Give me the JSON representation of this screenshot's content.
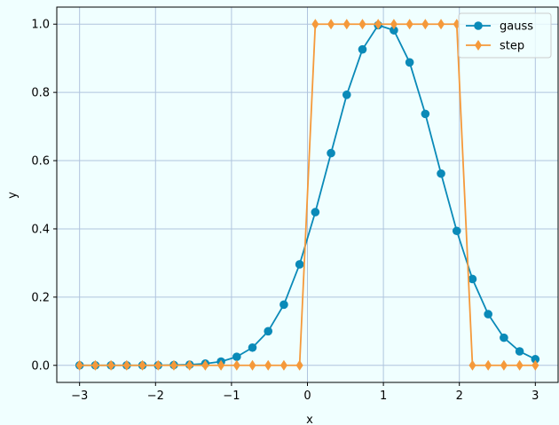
{
  "chart_data": {
    "type": "line",
    "title": "",
    "xlabel": "x",
    "ylabel": "y",
    "xlim": [
      -3.3,
      3.3
    ],
    "ylim": [
      -0.05,
      1.05
    ],
    "xticks": [
      -3,
      -2,
      -1,
      0,
      1,
      2,
      3
    ],
    "xtick_labels": [
      "−3",
      "−2",
      "−1",
      "0",
      "1",
      "2",
      "3"
    ],
    "yticks": [
      0.0,
      0.2,
      0.4,
      0.6,
      0.8,
      1.0
    ],
    "ytick_labels": [
      "0.0",
      "0.2",
      "0.4",
      "0.6",
      "0.8",
      "1.0"
    ],
    "grid": true,
    "legend_position": "top-right",
    "x": [
      -3.0,
      -2.7931,
      -2.5862,
      -2.3793,
      -2.1724,
      -1.9655,
      -1.7586,
      -1.5517,
      -1.3448,
      -1.1379,
      -0.931,
      -0.7241,
      -0.5172,
      -0.3103,
      -0.1034,
      0.1034,
      0.3103,
      0.5172,
      0.7241,
      0.931,
      1.1379,
      1.3448,
      1.5517,
      1.7586,
      1.9655,
      2.1724,
      2.3793,
      2.5862,
      2.7931,
      3.0
    ],
    "series": [
      {
        "name": "gauss",
        "color": "#0a8ab8",
        "marker": "circle",
        "values": [
          0.0,
          0.0,
          0.0,
          0.0,
          0.0,
          0.0,
          0.001,
          0.002,
          0.005,
          0.011,
          0.025,
          0.052,
          0.1,
          0.178,
          0.296,
          0.449,
          0.622,
          0.793,
          0.926,
          0.997,
          0.982,
          0.888,
          0.737,
          0.562,
          0.394,
          0.253,
          0.15,
          0.081,
          0.041,
          0.018
        ]
      },
      {
        "name": "step",
        "color": "#f5993a",
        "marker": "diamond",
        "values": [
          0,
          0,
          0,
          0,
          0,
          0,
          0,
          0,
          0,
          0,
          0,
          0,
          0,
          0,
          0,
          1,
          1,
          1,
          1,
          1,
          1,
          1,
          1,
          1,
          1,
          0,
          0,
          0,
          0,
          0
        ]
      }
    ]
  }
}
